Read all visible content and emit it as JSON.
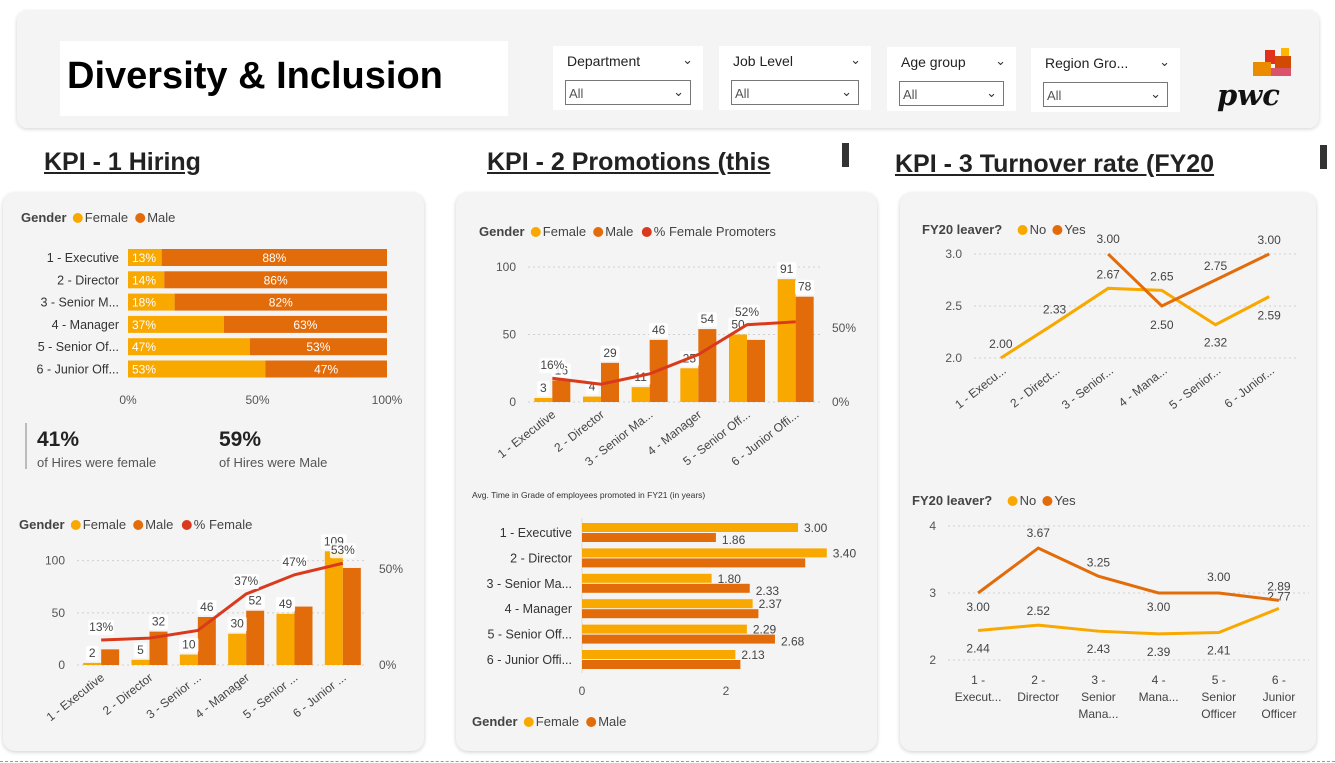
{
  "header": {
    "title": "Diversity & Inclusion",
    "slicers": [
      {
        "label": "Department",
        "value": "All"
      },
      {
        "label": "Job Level",
        "value": "All"
      },
      {
        "label": "Age group",
        "value": "All"
      },
      {
        "label": "Region Gro...",
        "value": "All"
      }
    ],
    "logo_text": "pwc"
  },
  "kpi_titles": {
    "kpi1": "KPI - 1 Hiring",
    "kpi2": "KPI - 2 Promotions (this",
    "kpi3": "KPI - 3 Turnover rate (FY20"
  },
  "colors": {
    "female": "#F9A800",
    "male": "#E36C0A",
    "line": "#D93A1C"
  },
  "hiring_stats": {
    "female_pct": "41%",
    "female_caption": "of Hires were female",
    "male_pct": "59%",
    "male_caption": "of Hires were Male"
  },
  "chart_data": [
    {
      "id": "hiring-share",
      "type": "bar",
      "orientation": "horizontal",
      "stacked": "100%",
      "legend_title": "Gender",
      "categories": [
        "1 - Executive",
        "2 - Director",
        "3 - Senior M...",
        "4 - Manager",
        "5 - Senior Of...",
        "6 - Junior Off..."
      ],
      "series": [
        {
          "name": "Female",
          "values": [
            13,
            14,
            18,
            37,
            47,
            53
          ],
          "labels": [
            "13%",
            "14%",
            "18%",
            "37%",
            "47%",
            "53%"
          ]
        },
        {
          "name": "Male",
          "values": [
            88,
            86,
            82,
            63,
            53,
            47
          ],
          "labels": [
            "88%",
            "86%",
            "82%",
            "63%",
            "53%",
            "47%"
          ]
        }
      ],
      "x_ticks": [
        "0%",
        "50%",
        "100%"
      ]
    },
    {
      "id": "hiring-counts",
      "type": "bar",
      "legend_title": "Gender",
      "categories": [
        "1 - Executive",
        "2 - Director",
        "3 - Senior ...",
        "4 - Manager",
        "5 - Senior ...",
        "6 - Junior ..."
      ],
      "series": [
        {
          "name": "Female",
          "values": [
            2,
            5,
            10,
            30,
            49,
            109
          ],
          "labels": [
            "2",
            "5",
            "10",
            "30",
            "49",
            "109"
          ]
        },
        {
          "name": "Male",
          "values": [
            15,
            32,
            46,
            52,
            56,
            93
          ],
          "labels": [
            "",
            "32",
            "46",
            "52",
            "",
            ""
          ]
        }
      ],
      "line": {
        "name": "% Female",
        "values": [
          13,
          14,
          18,
          37,
          47,
          53
        ],
        "labels": [
          "13%",
          "",
          "",
          "37%",
          "47%",
          "53%"
        ]
      },
      "y_ticks": [
        "0",
        "50",
        "100"
      ],
      "y2_ticks": [
        "0%",
        "50%"
      ],
      "ylim": [
        0,
        115
      ]
    },
    {
      "id": "promotions",
      "type": "bar",
      "legend_title": "Gender",
      "categories": [
        "1 - Executive",
        "2 - Director",
        "3 - Senior Ma...",
        "4 - Manager",
        "5 - Senior Off...",
        "6 - Junior Offi..."
      ],
      "series": [
        {
          "name": "Female",
          "values": [
            3,
            4,
            11,
            25,
            50,
            91
          ],
          "labels": [
            "3",
            "4",
            "11",
            "25",
            "50",
            "91"
          ]
        },
        {
          "name": "Male",
          "values": [
            16,
            29,
            46,
            54,
            46,
            78
          ],
          "labels": [
            "16",
            "29",
            "46",
            "54",
            "",
            "78"
          ]
        }
      ],
      "line": {
        "name": "% Female Promoters",
        "values": [
          16,
          12,
          19,
          32,
          52,
          54
        ],
        "labels": [
          "16%",
          "",
          "",
          "",
          "52%",
          ""
        ]
      },
      "y_ticks": [
        "0",
        "50",
        "100"
      ],
      "y2_ticks": [
        "0%",
        "50%"
      ],
      "ylim": [
        0,
        100
      ]
    },
    {
      "id": "time-in-grade",
      "type": "bar",
      "orientation": "horizontal",
      "title": "Avg. Time in Grade of employees promoted in FY21 (in years)",
      "legend_title": "Gender",
      "categories": [
        "1 - Executive",
        "2 - Director",
        "3 - Senior Ma...",
        "4 - Manager",
        "5 - Senior Off...",
        "6 - Junior Offi..."
      ],
      "series": [
        {
          "name": "Female",
          "values": [
            3.0,
            3.4,
            1.8,
            2.37,
            2.29,
            2.13
          ],
          "labels": [
            "3.00",
            "3.40",
            "1.80",
            "2.37",
            "2.29",
            "2.13"
          ]
        },
        {
          "name": "Male",
          "values": [
            1.86,
            3.1,
            2.33,
            2.45,
            2.68,
            2.2
          ],
          "labels": [
            "1.86",
            "",
            "2.33",
            "",
            "2.68",
            ""
          ]
        }
      ],
      "x_ticks": [
        "0",
        "2"
      ]
    },
    {
      "id": "turnover-1",
      "type": "line",
      "legend_title": "FY20 leaver?",
      "categories": [
        "1 - Execu...",
        "2 - Direct...",
        "3 - Senior...",
        "4 - Mana...",
        "5 - Senior...",
        "6 - Junior..."
      ],
      "series": [
        {
          "name": "No",
          "values": [
            2.0,
            2.33,
            2.67,
            2.65,
            2.32,
            2.59
          ],
          "labels": [
            "2.00",
            "2.33",
            "2.67",
            "2.65",
            "2.32",
            "2.59"
          ]
        },
        {
          "name": "Yes",
          "values": [
            null,
            null,
            3.0,
            2.5,
            2.75,
            3.0
          ],
          "labels": [
            "",
            "",
            "3.00",
            "2.50",
            "2.75",
            "3.00"
          ]
        }
      ],
      "y_ticks": [
        "2.0",
        "2.5",
        "3.0"
      ],
      "ylim": [
        2.0,
        3.0
      ]
    },
    {
      "id": "turnover-2",
      "type": "line",
      "legend_title": "FY20 leaver?",
      "categories": [
        [
          "1 -",
          "Execut..."
        ],
        [
          "2 -",
          "Director"
        ],
        [
          "3 -",
          "Senior",
          "Mana..."
        ],
        [
          "4 -",
          "Mana..."
        ],
        [
          "5 -",
          "Senior",
          "Officer"
        ],
        [
          "6 -",
          "Junior",
          "Officer"
        ]
      ],
      "series": [
        {
          "name": "No",
          "values": [
            2.44,
            2.52,
            2.43,
            2.39,
            2.41,
            2.77
          ],
          "labels": [
            "2.44",
            "2.52",
            "2.43",
            "2.39",
            "2.41",
            "2.77"
          ]
        },
        {
          "name": "Yes",
          "values": [
            3.0,
            3.67,
            3.25,
            3.0,
            3.0,
            2.89
          ],
          "labels": [
            "3.00",
            "3.67",
            "3.25",
            "3.00",
            "3.00",
            "2.89"
          ]
        }
      ],
      "y_ticks": [
        "2",
        "3",
        "4"
      ],
      "ylim": [
        2,
        4
      ]
    }
  ]
}
